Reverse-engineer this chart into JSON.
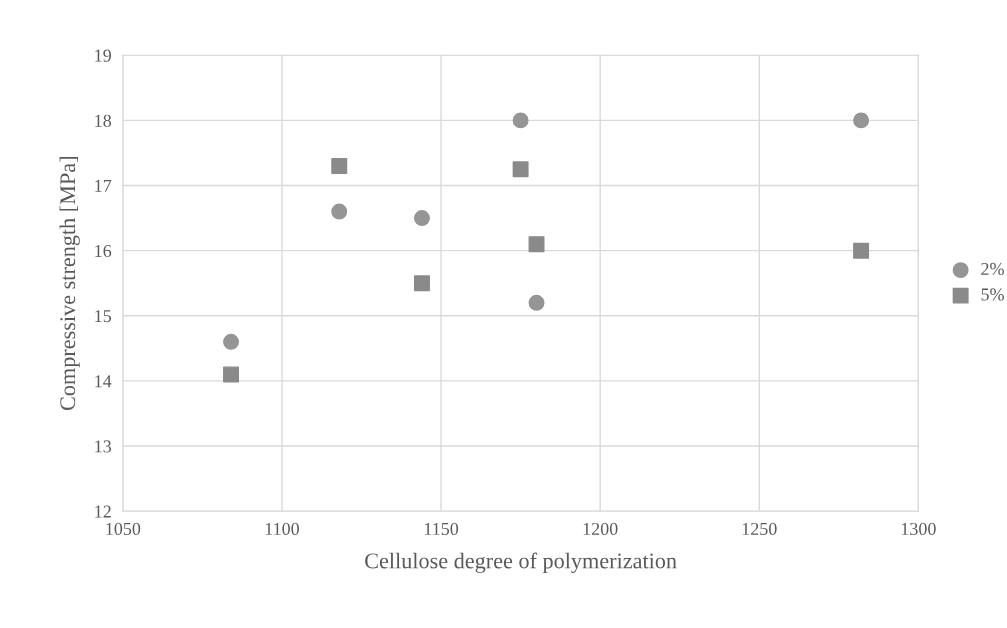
{
  "chart_data": {
    "type": "scatter",
    "xlabel": "Cellulose degree of polymerization",
    "ylabel": "Compressive strength [MPa]",
    "series": [
      {
        "name": "2%",
        "color": "#959595",
        "marker": "circle",
        "x": [
          1084,
          1118,
          1144,
          1175,
          1180,
          1282
        ],
        "values": [
          14.6,
          16.6,
          16.5,
          18.0,
          15.2,
          18.0
        ]
      },
      {
        "name": "5%",
        "color": "#8a8a8a",
        "marker": "square",
        "x": [
          1084,
          1118,
          1144,
          1175,
          1180,
          1282
        ],
        "values": [
          14.1,
          17.3,
          15.5,
          17.25,
          16.1,
          16.0
        ]
      }
    ],
    "xlim": [
      1050,
      1300
    ],
    "xticks": [
      1050,
      1100,
      1150,
      1200,
      1250,
      1300
    ],
    "ylim": [
      12,
      19
    ],
    "yticks": [
      12,
      13,
      14,
      15,
      16,
      17,
      18,
      19
    ],
    "grid": true,
    "legend": "right"
  }
}
